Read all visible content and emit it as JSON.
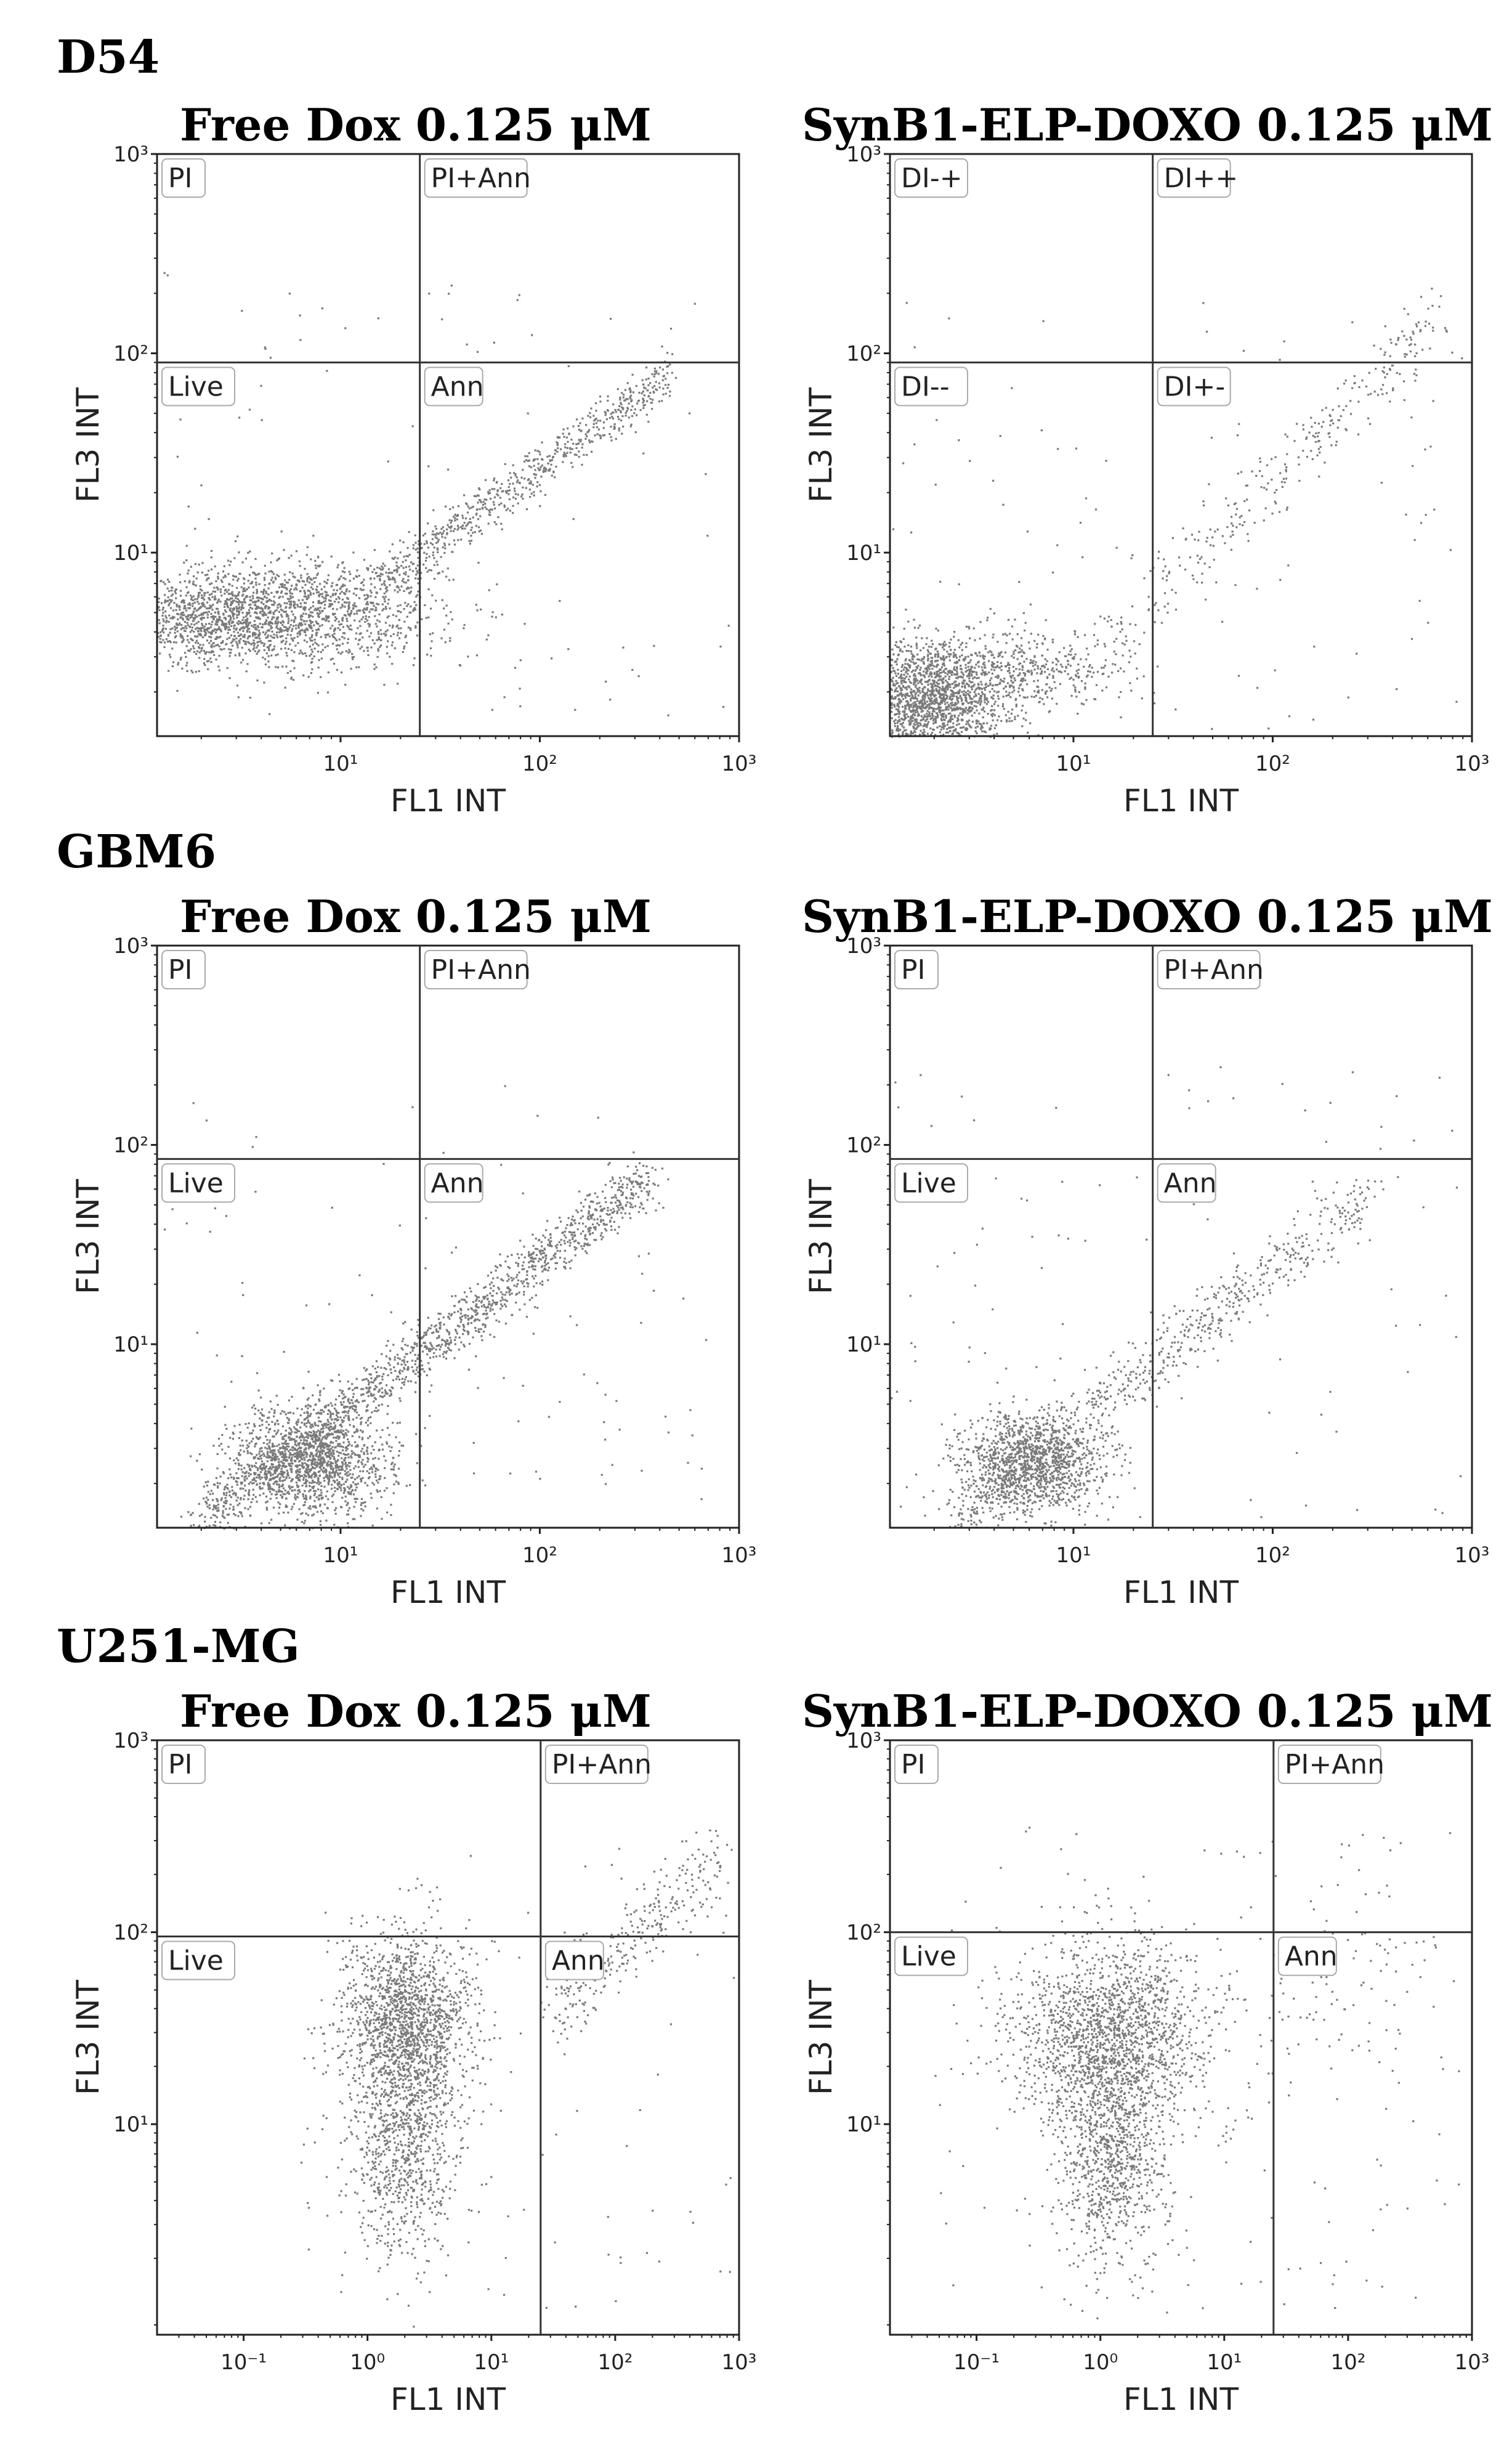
{
  "rows": [
    {
      "cell_line": "D54",
      "panels": [
        {
          "title": "Free Dox 0.125 μM",
          "quadrants": [
            "PI",
            "PI+Ann",
            "Live",
            "Ann"
          ],
          "gate": {
            "x": 25,
            "y": 90
          },
          "xlim": [
            1.2,
            1000
          ],
          "ylim": [
            1.2,
            1000
          ],
          "xticks": [
            10,
            100,
            1000
          ],
          "yticks": [
            10,
            100,
            1000
          ]
        },
        {
          "title": "SynB1-ELP-DOXO 0.125 μM",
          "quadrants": [
            "DI-+",
            "DI++",
            "DI--",
            "DI+-"
          ],
          "gate": {
            "x": 25,
            "y": 90
          },
          "xlim": [
            1.2,
            1000
          ],
          "ylim": [
            1.2,
            1000
          ],
          "xticks": [
            10,
            100,
            1000
          ],
          "yticks": [
            10,
            100,
            1000
          ]
        }
      ]
    },
    {
      "cell_line": "GBM6",
      "panels": [
        {
          "title": "Free Dox 0.125 μM",
          "quadrants": [
            "PI",
            "PI+Ann",
            "Live",
            "Ann"
          ],
          "gate": {
            "x": 25,
            "y": 85
          },
          "xlim": [
            1.2,
            1000
          ],
          "ylim": [
            1.2,
            1000
          ],
          "xticks": [
            10,
            100,
            1000
          ],
          "yticks": [
            10,
            100,
            1000
          ]
        },
        {
          "title": "SynB1-ELP-DOXO 0.125 μM",
          "quadrants": [
            "PI",
            "PI+Ann",
            "Live",
            "Ann"
          ],
          "gate": {
            "x": 25,
            "y": 85
          },
          "xlim": [
            1.2,
            1000
          ],
          "ylim": [
            1.2,
            1000
          ],
          "xticks": [
            10,
            100,
            1000
          ],
          "yticks": [
            10,
            100,
            1000
          ]
        }
      ]
    },
    {
      "cell_line": "U251-MG",
      "panels": [
        {
          "title": "Free Dox 0.125 μM",
          "quadrants": [
            "PI",
            "PI+Ann",
            "Live",
            "Ann"
          ],
          "gate": {
            "x": 25,
            "y": 95
          },
          "xlim": [
            0.02,
            1000
          ],
          "ylim": [
            0.8,
            1000
          ],
          "xticks": [
            0.1,
            1,
            10,
            100,
            1000
          ],
          "yticks": [
            10,
            100,
            1000
          ]
        },
        {
          "title": "SynB1-ELP-DOXO 0.125 μM",
          "quadrants": [
            "PI",
            "PI+Ann",
            "Live",
            "Ann"
          ],
          "gate": {
            "x": 25,
            "y": 100
          },
          "xlim": [
            0.02,
            1000
          ],
          "ylim": [
            0.8,
            1000
          ],
          "xticks": [
            0.1,
            1,
            10,
            100,
            1000
          ],
          "yticks": [
            10,
            100,
            1000
          ]
        }
      ]
    }
  ],
  "axis": {
    "xlabel": "FL1 INT",
    "ylabel": "FL3 INT"
  },
  "chart_data": [
    {
      "type": "scatter",
      "panel": "D54 / Free Dox 0.125 μM",
      "xlabel": "FL1 INT",
      "ylabel": "FL3 INT",
      "log_axes": true,
      "quadrant_gate": {
        "x": 25,
        "y": 90
      },
      "clusters": [
        {
          "center": [
            5,
            5
          ],
          "spread": [
            0.4,
            0.13
          ],
          "n": 1700
        },
        {
          "center": [
            2,
            4.5
          ],
          "spread": [
            0.2,
            0.1
          ],
          "n": 400
        }
      ],
      "trend": {
        "from": [
          15,
          7
        ],
        "to": [
          450,
          80
        ],
        "n": 700,
        "jitter": 0.06
      },
      "scatter": {
        "xrange": [
          1.2,
          900
        ],
        "yrange": [
          1.5,
          300
        ],
        "n": 90
      }
    },
    {
      "type": "scatter",
      "panel": "D54 / SynB1-ELP-DOXO 0.125 μM",
      "xlabel": "FL1 INT",
      "ylabel": "FL3 INT",
      "log_axes": true,
      "quadrant_gate": {
        "x": 25,
        "y": 90
      },
      "clusters": [
        {
          "center": [
            1.8,
            1.9
          ],
          "spread": [
            0.22,
            0.14
          ],
          "n": 1900
        },
        {
          "center": [
            6,
            2.6
          ],
          "spread": [
            0.25,
            0.1
          ],
          "n": 350
        }
      ],
      "trend": {
        "from": [
          12,
          3
        ],
        "to": [
          700,
          150
        ],
        "n": 320,
        "jitter": 0.09
      },
      "scatter": {
        "xrange": [
          1.2,
          900
        ],
        "yrange": [
          1.3,
          200
        ],
        "n": 110
      }
    },
    {
      "type": "scatter",
      "panel": "GBM6 / Free Dox 0.125 μM",
      "xlabel": "FL1 INT",
      "ylabel": "FL3 INT",
      "log_axes": true,
      "quadrant_gate": {
        "x": 25,
        "y": 85
      },
      "clusters": [
        {
          "center": [
            7,
            2.6
          ],
          "spread": [
            0.2,
            0.14
          ],
          "n": 1400
        }
      ],
      "trend": {
        "from": [
          2,
          1.3
        ],
        "to": [
          350,
          70
        ],
        "n": 1500,
        "jitter": 0.07
      },
      "scatter": {
        "xrange": [
          1.2,
          700
        ],
        "yrange": [
          1.3,
          200
        ],
        "n": 120
      }
    },
    {
      "type": "scatter",
      "panel": "GBM6 / SynB1-ELP-DOXO 0.125 μM",
      "xlabel": "FL1 INT",
      "ylabel": "FL3 INT",
      "log_axes": true,
      "quadrant_gate": {
        "x": 25,
        "y": 85
      },
      "clusters": [
        {
          "center": [
            6,
            2.5
          ],
          "spread": [
            0.18,
            0.13
          ],
          "n": 1300
        }
      ],
      "trend": {
        "from": [
          2.5,
          1.3
        ],
        "to": [
          300,
          60
        ],
        "n": 700,
        "jitter": 0.08
      },
      "scatter": {
        "xrange": [
          1.2,
          900
        ],
        "yrange": [
          1.3,
          250
        ],
        "n": 110
      }
    },
    {
      "type": "scatter",
      "panel": "U251-MG / Free Dox 0.125 μM",
      "xlabel": "FL1 INT",
      "ylabel": "FL3 INT",
      "log_axes": true,
      "quadrant_gate": {
        "x": 25,
        "y": 95
      },
      "clusters": [
        {
          "center": [
            2,
            35
          ],
          "spread": [
            0.26,
            0.22
          ],
          "n": 1500
        },
        {
          "center": [
            2,
            8
          ],
          "spread": [
            0.22,
            0.28
          ],
          "n": 900
        }
      ],
      "trend": {
        "from": [
          30,
          40
        ],
        "to": [
          700,
          250
        ],
        "n": 300,
        "jitter": 0.12
      },
      "scatter": {
        "xrange": [
          0.3,
          900
        ],
        "yrange": [
          1,
          300
        ],
        "n": 100
      }
    },
    {
      "type": "scatter",
      "panel": "U251-MG / SynB1-ELP-DOXO 0.125 μM",
      "xlabel": "FL1 INT",
      "ylabel": "FL3 INT",
      "log_axes": true,
      "quadrant_gate": {
        "x": 25,
        "y": 100
      },
      "clusters": [
        {
          "center": [
            1.2,
            30
          ],
          "spread": [
            0.4,
            0.24
          ],
          "n": 1700
        },
        {
          "center": [
            1.2,
            7
          ],
          "spread": [
            0.22,
            0.28
          ],
          "n": 900
        }
      ],
      "trend": {
        "from": [
          20,
          30
        ],
        "to": [
          400,
          80
        ],
        "n": 80,
        "jitter": 0.25
      },
      "scatter": {
        "xrange": [
          0.05,
          800
        ],
        "yrange": [
          1,
          400
        ],
        "n": 160
      }
    }
  ],
  "colors": {
    "points": "#7a7a7a",
    "axis": "#222222",
    "gate": "#333333"
  }
}
